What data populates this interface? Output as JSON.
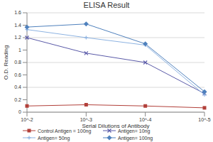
{
  "chart_data": {
    "type": "line",
    "title": "ELISA Result",
    "x_label": "Serial Dilutions of Antibody",
    "y_label": "O.D. Reading",
    "categories": [
      "10^-2",
      "10^-3",
      "10^-4",
      "10^-5"
    ],
    "series": [
      {
        "name": "Control Antigen = 100ng",
        "color": "#b2403a",
        "marker": "square",
        "values": [
          0.1,
          0.12,
          0.1,
          0.07
        ]
      },
      {
        "name": "Antigen= 10ng",
        "color": "#5a5aa8",
        "marker": "x",
        "values": [
          1.2,
          0.95,
          0.8,
          0.3
        ]
      },
      {
        "name": "Antigen= 50ng",
        "color": "#8db3e2",
        "marker": "plus",
        "values": [
          1.33,
          1.2,
          1.08,
          0.28
        ]
      },
      {
        "name": "Antigen= 100ng",
        "color": "#4f81bd",
        "marker": "diamond",
        "values": [
          1.37,
          1.42,
          1.1,
          0.33
        ]
      }
    ],
    "ylim": [
      0,
      1.6
    ],
    "yticks": [
      0,
      0.2,
      0.4,
      0.6,
      0.8,
      1,
      1.2,
      1.4,
      1.6
    ],
    "grid": true,
    "legend": "bottom"
  }
}
